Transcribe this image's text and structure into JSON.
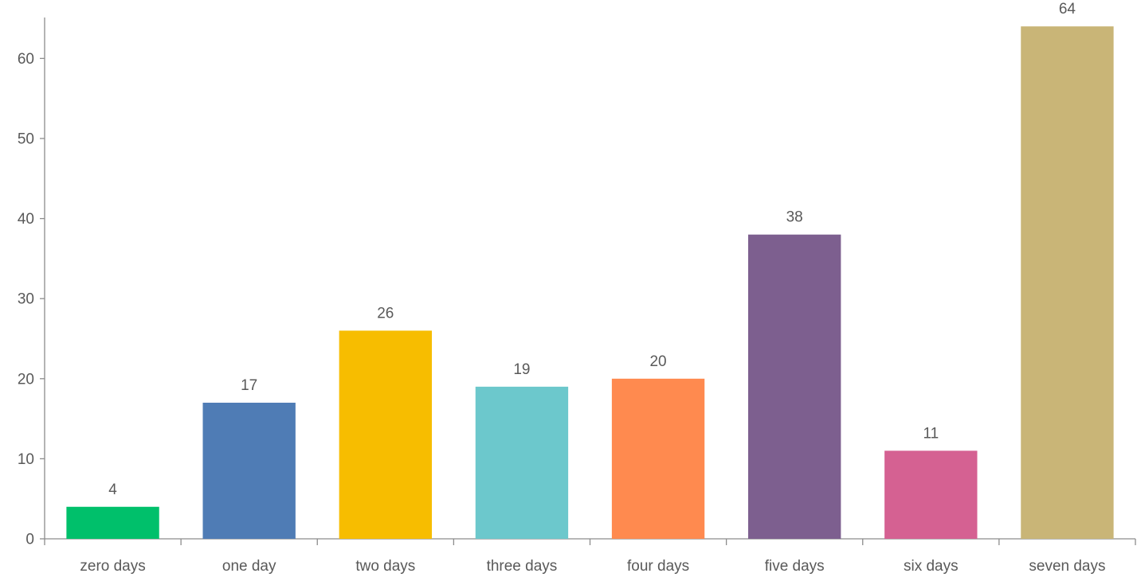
{
  "chart_data": {
    "type": "bar",
    "title": "",
    "xlabel": "",
    "ylabel": "",
    "categories": [
      "zero days",
      "one day",
      "two days",
      "three days",
      "four days",
      "five days",
      "six days",
      "seven days"
    ],
    "values": [
      4,
      17,
      26,
      19,
      20,
      38,
      11,
      64
    ],
    "data_labels": [
      "4",
      "17",
      "26",
      "19",
      "20",
      "38",
      "11",
      "64"
    ],
    "colors": [
      "#00c06b",
      "#4f7cb5",
      "#f7bd00",
      "#6cc8cc",
      "#ff8a4f",
      "#7d5f8f",
      "#d56192",
      "#c9b577"
    ],
    "ylim": [
      0,
      65
    ],
    "yticks": [
      0,
      10,
      20,
      30,
      40,
      50,
      60
    ],
    "ytick_labels": [
      "0",
      "10",
      "20",
      "30",
      "40",
      "50",
      "60"
    ],
    "grid": false,
    "legend": "none"
  }
}
